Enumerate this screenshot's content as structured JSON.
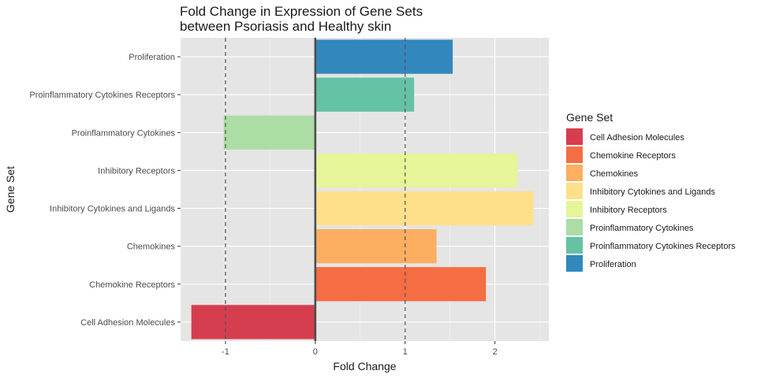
{
  "chart_data": {
    "type": "bar",
    "orientation": "horizontal",
    "title_lines": [
      "Fold Change in Expression of Gene Sets",
      "between Psoriasis and Healthy skin"
    ],
    "xlabel": "Fold Change",
    "ylabel": "Gene Set",
    "xlim": [
      -1.5,
      2.6
    ],
    "x_ticks": [
      -1,
      0,
      1,
      2
    ],
    "x_tick_labels": [
      "-1",
      "0",
      "1",
      "2"
    ],
    "reference_lines": [
      {
        "x": -1,
        "style": "dashed"
      },
      {
        "x": 0,
        "style": "solid"
      },
      {
        "x": 1,
        "style": "dashed"
      }
    ],
    "categories": [
      "Cell Adhesion Molecules",
      "Chemokine Receptors",
      "Chemokines",
      "Inhibitory Cytokines and Ligands",
      "Inhibitory Receptors",
      "Proinflammatory Cytokines",
      "Proinflammatory Cytokines Receptors",
      "Proliferation"
    ],
    "values": [
      -1.38,
      1.9,
      1.35,
      2.43,
      2.25,
      -1.02,
      1.1,
      1.53
    ],
    "colors": [
      "#d53e4f",
      "#f46d43",
      "#fdae61",
      "#fee08b",
      "#e6f598",
      "#abdda4",
      "#66c2a5",
      "#3288bd"
    ],
    "legend": {
      "title": "Gene Set",
      "position": "right",
      "entries": [
        "Cell Adhesion Molecules",
        "Chemokine Receptors",
        "Chemokines",
        "Inhibitory Cytokines and Ligands",
        "Inhibitory Receptors",
        "Proinflammatory Cytokines",
        "Proinflammatory Cytokines Receptors",
        "Proliferation"
      ]
    },
    "grid": true,
    "panel_background": "#e5e5e5"
  }
}
